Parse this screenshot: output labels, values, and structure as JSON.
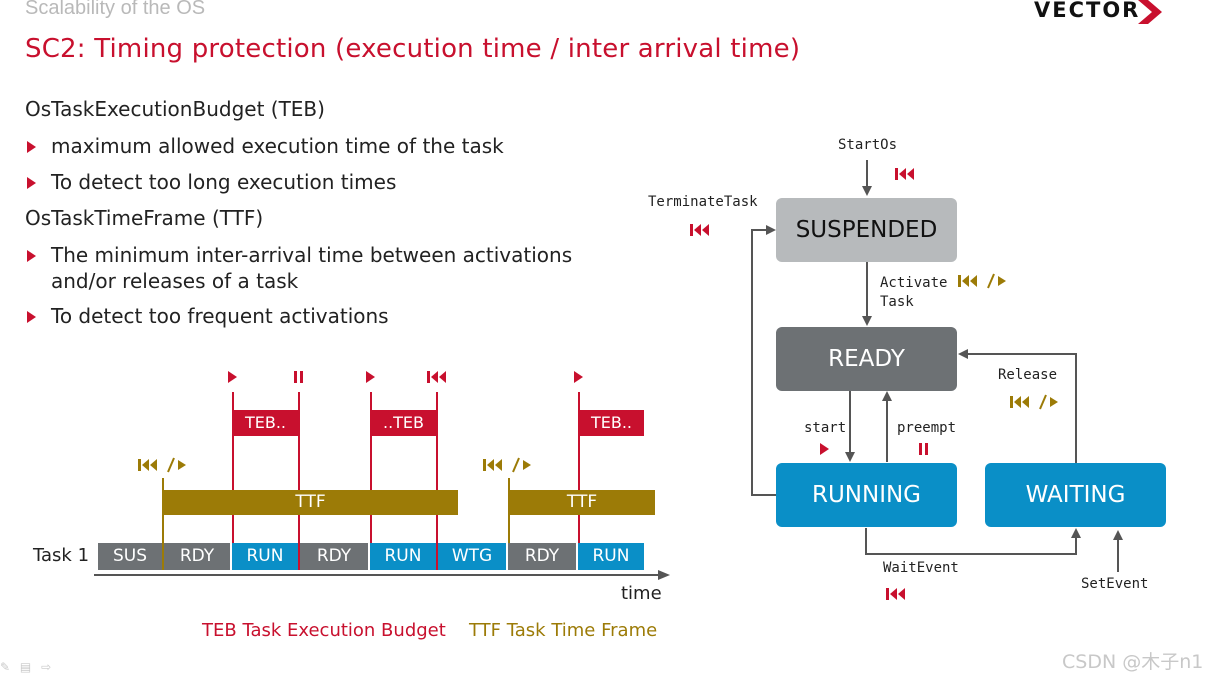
{
  "slide": {
    "section_title": "Scalability of the OS",
    "title": "SC2: Timing protection (execution time / inter arrival time)",
    "logo_text": "VECTOR"
  },
  "content": {
    "teb_heading": "OsTaskExecutionBudget (TEB)",
    "teb_bullets": [
      "maximum allowed execution time of the task",
      "To detect too long execution times"
    ],
    "ttf_heading": "OsTaskTimeFrame (TTF)",
    "ttf_bullet1_line1": "The minimum inter-arrival time between activations",
    "ttf_bullet1_line2": "and/or releases of a task",
    "ttf_bullet2": "To detect too frequent activations"
  },
  "timeline": {
    "task_label": "Task 1",
    "cells": [
      {
        "label": "SUS",
        "color": "#6d7174"
      },
      {
        "label": "RDY",
        "color": "#6d7174"
      },
      {
        "label": "RUN",
        "color": "#0a8fc7"
      },
      {
        "label": "RDY",
        "color": "#6d7174"
      },
      {
        "label": "RUN",
        "color": "#0a8fc7"
      },
      {
        "label": "WTG",
        "color": "#0a8fc7"
      },
      {
        "label": "RDY",
        "color": "#6d7174"
      },
      {
        "label": "RUN",
        "color": "#0a8fc7"
      }
    ],
    "teb_boxes": [
      "TEB..",
      "..TEB",
      "TEB.."
    ],
    "ttf_bars": [
      "TTF",
      "TTF"
    ],
    "time_label": "time",
    "legend_teb": "TEB Task Execution Budget",
    "legend_ttf": "TTF Task Time Frame"
  },
  "state_machine": {
    "states": {
      "suspended": "SUSPENDED",
      "ready": "READY",
      "running": "RUNNING",
      "waiting": "WAITING"
    },
    "labels": {
      "start_os": "StartOs",
      "terminate_task": "TerminateTask",
      "activate_task_1": "Activate",
      "activate_task_2": "Task",
      "release": "Release",
      "start": "start",
      "preempt": "preempt",
      "wait_event": "WaitEvent",
      "set_event": "SetEvent"
    }
  },
  "watermark": "CSDN @木子n1",
  "colors": {
    "red": "#c8102e",
    "gold": "#9c7b07",
    "blue": "#0a8fc7",
    "gray": "#6d7174"
  }
}
